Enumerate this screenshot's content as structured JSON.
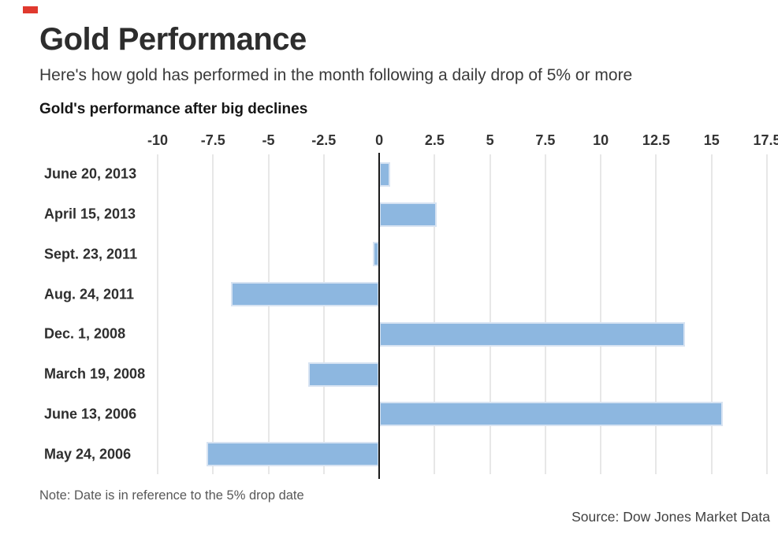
{
  "header": {
    "title": "Gold Performance",
    "subtitle": "Here's how gold has performed in the month following a daily drop of 5% or more"
  },
  "chart_data": {
    "type": "bar",
    "orientation": "horizontal",
    "title": "Gold's performance after big declines",
    "categories": [
      "June 20, 2013",
      "April 15, 2013",
      "Sept. 23, 2011",
      "Aug. 24, 2011",
      "Dec. 1, 2008",
      "March 19, 2008",
      "June 13, 2006",
      "May 24, 2006"
    ],
    "values": [
      0.5,
      2.6,
      -0.3,
      -6.7,
      13.8,
      -3.2,
      15.5,
      -7.8
    ],
    "xlabel": "",
    "ylabel": "",
    "xlim": [
      -10,
      17.5
    ],
    "xticks": [
      -10,
      -7.5,
      -5,
      -2.5,
      0,
      2.5,
      5,
      7.5,
      10,
      12.5,
      15,
      17.5
    ],
    "grid": true,
    "legend": false,
    "bar_color": "#8db7e0",
    "bar_border_color": "#d7e3f2",
    "gridline_color": "#e7e7e7",
    "zero_line_color": "#1a1a1a"
  },
  "footer": {
    "note": "Note: Date is in reference to the 5% drop date",
    "source": "Source: Dow Jones Market Data"
  },
  "brand": {
    "accent_color": "#e0392e"
  }
}
